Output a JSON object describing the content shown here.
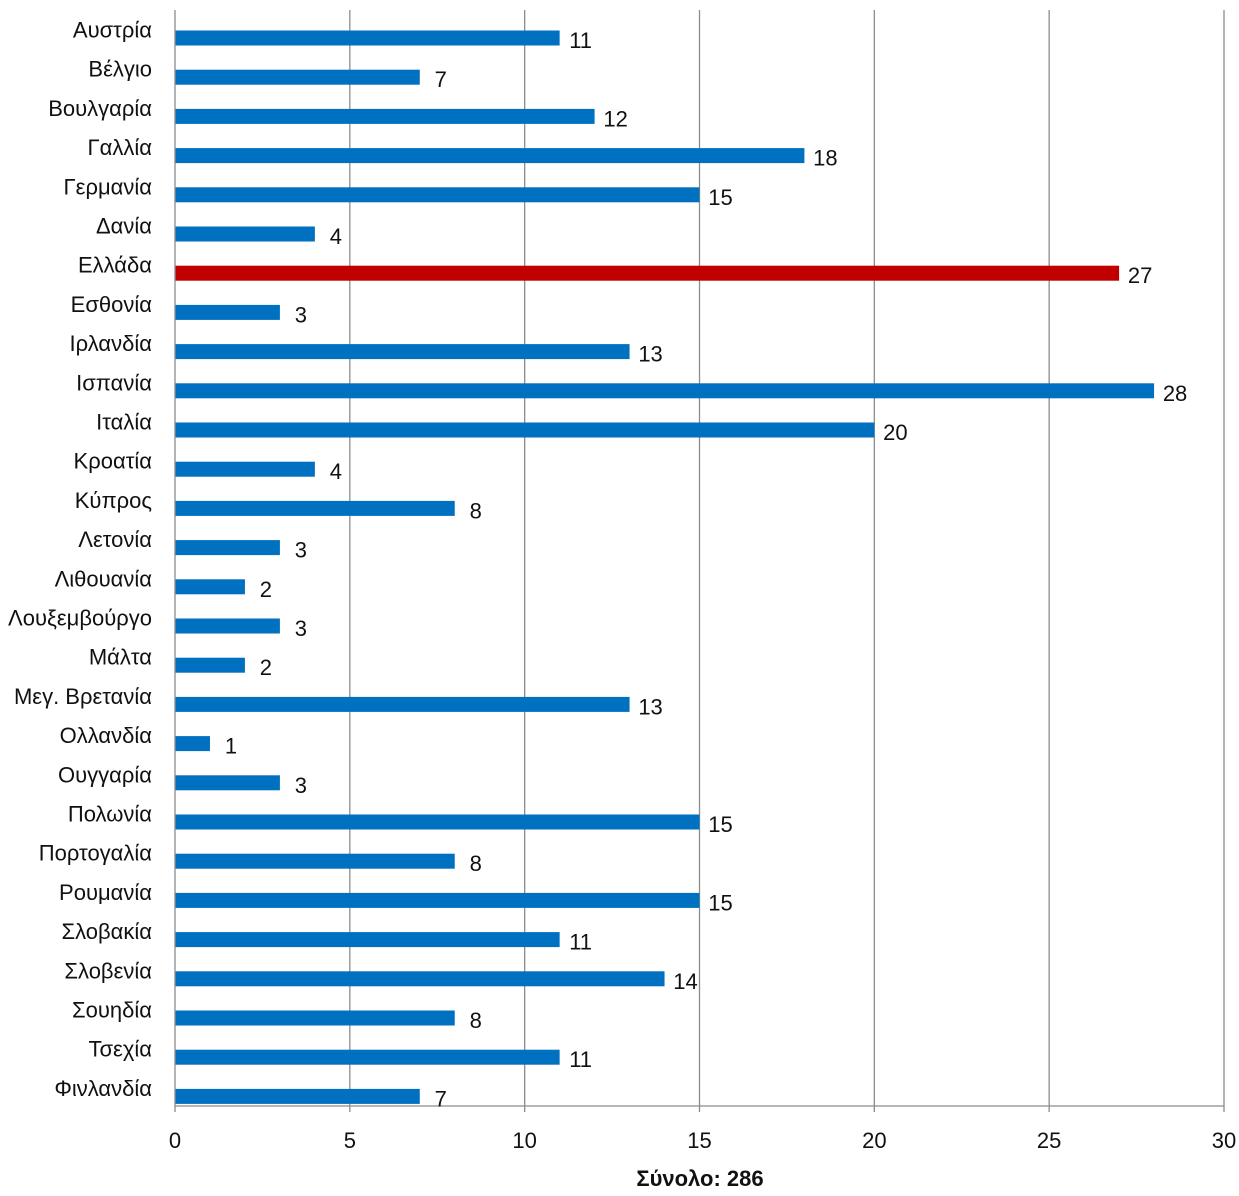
{
  "chart_data": {
    "type": "bar",
    "orientation": "horizontal",
    "categories": [
      "Αυστρία",
      "Βέλγιο",
      "Βουλγαρία",
      "Γαλλία",
      "Γερμανία",
      "Δανία",
      "Ελλάδα",
      "Εσθονία",
      "Ιρλανδία",
      "Ισπανία",
      "Ιταλία",
      "Κροατία",
      "Κύπρος",
      "Λετονία",
      "Λιθουανία",
      "Λουξεμβούργο",
      "Μάλτα",
      "Μεγ. Βρετανία",
      "Ολλανδία",
      "Ουγγαρία",
      "Πολωνία",
      "Πορτογαλία",
      "Ρουμανία",
      "Σλοβακία",
      "Σλοβενία",
      "Σουηδία",
      "Τσεχία",
      "Φινλανδία"
    ],
    "values": [
      11,
      7,
      12,
      18,
      15,
      4,
      27,
      3,
      13,
      28,
      20,
      4,
      8,
      3,
      2,
      3,
      2,
      13,
      1,
      3,
      15,
      8,
      15,
      11,
      14,
      8,
      11,
      7
    ],
    "highlight_category": "Ελλάδα",
    "title": "",
    "xlabel": "Σύνολο: 286",
    "ylabel": "",
    "xlim": [
      0,
      30
    ],
    "xticks": [
      0,
      5,
      10,
      15,
      20,
      25,
      30
    ],
    "grid": "vertical",
    "legend": "none",
    "colors": {
      "bar": "#0070C0",
      "highlight": "#C00000",
      "grid": "#8c8c8c",
      "axis": "#8c8c8c",
      "text": "#111111"
    }
  }
}
